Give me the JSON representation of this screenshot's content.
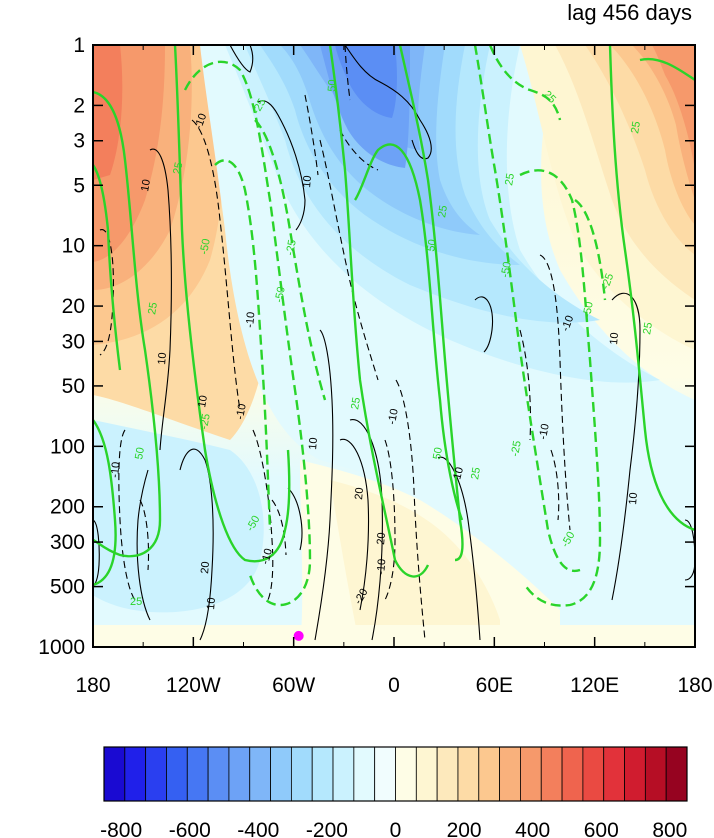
{
  "chart_data": {
    "type": "heatmap",
    "title": "lag 456 days",
    "xlabel": "",
    "ylabel": "",
    "x_ticks": [
      "180",
      "120W",
      "60W",
      "0",
      "60E",
      "120E",
      "180"
    ],
    "y_ticks": [
      "1",
      "2",
      "3",
      "5",
      "10",
      "20",
      "30",
      "50",
      "100",
      "200",
      "300",
      "500",
      "1000"
    ],
    "y_scale": "log",
    "y_inverted": true,
    "colorbar": {
      "ticks": [
        "-800",
        "-600",
        "-400",
        "-200",
        "0",
        "200",
        "400",
        "600",
        "800"
      ],
      "min": -850,
      "max": 850,
      "interval": 50,
      "colors": [
        "#1a0ad2",
        "#2020ea",
        "#2a3ff0",
        "#3560f2",
        "#4677f3",
        "#5b8ef4",
        "#6da2f6",
        "#7fb6f8",
        "#8fcafa",
        "#a1dbfc",
        "#b5e8fd",
        "#cbf2fe",
        "#e2fafe",
        "#f1fdfe",
        "#fefde6",
        "#fef6d2",
        "#fde9bc",
        "#fddba6",
        "#fcc88f",
        "#f9b17c",
        "#f6996b",
        "#f37f5c",
        "#ef644e",
        "#ea4a42",
        "#e2323a",
        "#d01c2f",
        "#b60e25",
        "#960320"
      ]
    },
    "green_contour_levels": [
      -50,
      -25,
      25,
      50
    ],
    "black_contour_levels": [
      -20,
      -10,
      10,
      20
    ],
    "contour_labels": {
      "green": [
        "25",
        "-25",
        "50",
        "-50"
      ],
      "black": [
        "10",
        "-10",
        "20",
        "-20"
      ]
    },
    "marker": {
      "lon": -57,
      "pressure": 880,
      "color": "#ff00ff"
    }
  }
}
